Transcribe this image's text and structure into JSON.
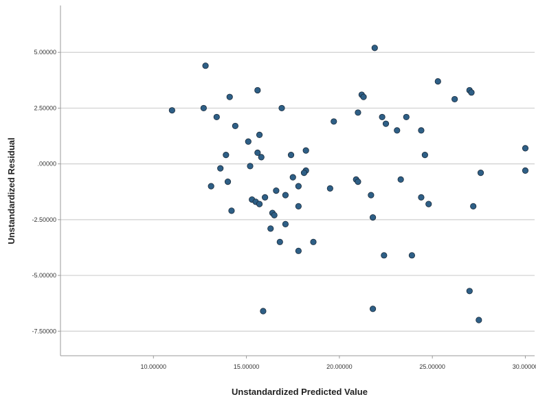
{
  "chart_data": {
    "type": "scatter",
    "title": "",
    "xlabel": "Unstandardized Predicted Value",
    "ylabel": "Unstandardized Residual",
    "xlim": [
      5.0,
      30.5
    ],
    "ylim": [
      -8.6,
      7.1
    ],
    "grid": "horizontal",
    "colors": {
      "point": "#2e5f86",
      "point_edge": "#1a2a3a",
      "grid": "#cfcfcf",
      "axis": "#9a9a9a"
    },
    "x_ticks": [
      {
        "value": 10.0,
        "label": "10.00000"
      },
      {
        "value": 15.0,
        "label": "15.00000"
      },
      {
        "value": 20.0,
        "label": "20.00000"
      },
      {
        "value": 25.0,
        "label": "25.00000"
      },
      {
        "value": 30.0,
        "label": "30.00000"
      }
    ],
    "y_ticks": [
      {
        "value": 5.0,
        "label": "5.00000"
      },
      {
        "value": 2.5,
        "label": "2.50000"
      },
      {
        "value": 0.0,
        "label": ".00000"
      },
      {
        "value": -2.5,
        "label": "-2.50000"
      },
      {
        "value": -5.0,
        "label": "-5.00000"
      },
      {
        "value": -7.5,
        "label": "-7.50000"
      }
    ],
    "points": [
      {
        "x": 21.9,
        "y": 5.2
      },
      {
        "x": 12.8,
        "y": 4.4
      },
      {
        "x": 25.3,
        "y": 3.7
      },
      {
        "x": 27.0,
        "y": 3.3
      },
      {
        "x": 27.1,
        "y": 3.2
      },
      {
        "x": 15.6,
        "y": 3.3
      },
      {
        "x": 14.1,
        "y": 3.0
      },
      {
        "x": 21.2,
        "y": 3.1
      },
      {
        "x": 21.3,
        "y": 3.0
      },
      {
        "x": 26.2,
        "y": 2.9
      },
      {
        "x": 16.9,
        "y": 2.5
      },
      {
        "x": 11.0,
        "y": 2.4
      },
      {
        "x": 12.7,
        "y": 2.5
      },
      {
        "x": 13.4,
        "y": 2.1
      },
      {
        "x": 21.0,
        "y": 2.3
      },
      {
        "x": 22.3,
        "y": 2.1
      },
      {
        "x": 23.6,
        "y": 2.1
      },
      {
        "x": 19.7,
        "y": 1.9
      },
      {
        "x": 22.5,
        "y": 1.8
      },
      {
        "x": 14.4,
        "y": 1.7
      },
      {
        "x": 23.1,
        "y": 1.5
      },
      {
        "x": 24.4,
        "y": 1.5
      },
      {
        "x": 15.7,
        "y": 1.3
      },
      {
        "x": 15.1,
        "y": 1.0
      },
      {
        "x": 30.0,
        "y": 0.7
      },
      {
        "x": 18.2,
        "y": 0.6
      },
      {
        "x": 15.6,
        "y": 0.5
      },
      {
        "x": 13.9,
        "y": 0.4
      },
      {
        "x": 15.8,
        "y": 0.3
      },
      {
        "x": 17.4,
        "y": 0.4
      },
      {
        "x": 24.6,
        "y": 0.4
      },
      {
        "x": 15.2,
        "y": -0.1
      },
      {
        "x": 13.6,
        "y": -0.2
      },
      {
        "x": 18.2,
        "y": -0.3
      },
      {
        "x": 18.1,
        "y": -0.4
      },
      {
        "x": 30.0,
        "y": -0.3
      },
      {
        "x": 27.6,
        "y": -0.4
      },
      {
        "x": 17.5,
        "y": -0.6
      },
      {
        "x": 14.0,
        "y": -0.8
      },
      {
        "x": 13.1,
        "y": -1.0
      },
      {
        "x": 17.8,
        "y": -1.0
      },
      {
        "x": 19.5,
        "y": -1.1
      },
      {
        "x": 16.6,
        "y": -1.2
      },
      {
        "x": 20.9,
        "y": -0.7
      },
      {
        "x": 21.0,
        "y": -0.8
      },
      {
        "x": 23.3,
        "y": -0.7
      },
      {
        "x": 17.1,
        "y": -1.4
      },
      {
        "x": 21.7,
        "y": -1.4
      },
      {
        "x": 16.0,
        "y": -1.5
      },
      {
        "x": 24.4,
        "y": -1.5
      },
      {
        "x": 15.3,
        "y": -1.6
      },
      {
        "x": 15.5,
        "y": -1.7
      },
      {
        "x": 15.7,
        "y": -1.8
      },
      {
        "x": 24.8,
        "y": -1.8
      },
      {
        "x": 17.8,
        "y": -1.9
      },
      {
        "x": 27.2,
        "y": -1.9
      },
      {
        "x": 14.2,
        "y": -2.1
      },
      {
        "x": 16.4,
        "y": -2.2
      },
      {
        "x": 16.5,
        "y": -2.3
      },
      {
        "x": 21.8,
        "y": -2.4
      },
      {
        "x": 17.1,
        "y": -2.7
      },
      {
        "x": 16.3,
        "y": -2.9
      },
      {
        "x": 16.8,
        "y": -3.5
      },
      {
        "x": 18.6,
        "y": -3.5
      },
      {
        "x": 17.8,
        "y": -3.9
      },
      {
        "x": 22.4,
        "y": -4.1
      },
      {
        "x": 23.9,
        "y": -4.1
      },
      {
        "x": 27.0,
        "y": -5.7
      },
      {
        "x": 15.9,
        "y": -6.6
      },
      {
        "x": 21.8,
        "y": -6.5
      },
      {
        "x": 27.5,
        "y": -7.0
      }
    ]
  }
}
